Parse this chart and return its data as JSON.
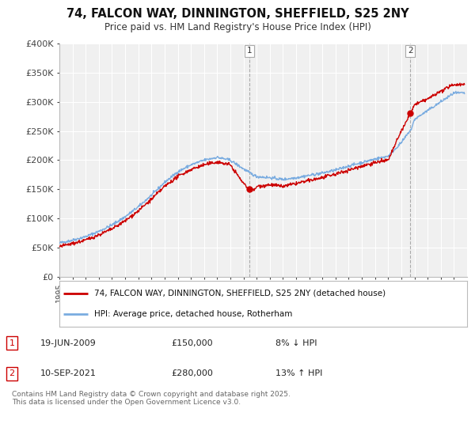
{
  "title_line1": "74, FALCON WAY, DINNINGTON, SHEFFIELD, S25 2NY",
  "title_line2": "Price paid vs. HM Land Registry's House Price Index (HPI)",
  "background_color": "#ffffff",
  "plot_bg_color": "#f0f0f0",
  "grid_color": "#ffffff",
  "red_line_color": "#cc0000",
  "blue_line_color": "#7aace0",
  "sale1_x": 2009.46,
  "sale1_y": 150000,
  "sale1_label": "1",
  "sale2_x": 2021.69,
  "sale2_y": 280000,
  "sale2_label": "2",
  "legend_red": "74, FALCON WAY, DINNINGTON, SHEFFIELD, S25 2NY (detached house)",
  "legend_blue": "HPI: Average price, detached house, Rotherham",
  "annotation1_date": "19-JUN-2009",
  "annotation1_price": "£150,000",
  "annotation1_hpi": "8% ↓ HPI",
  "annotation2_date": "10-SEP-2021",
  "annotation2_price": "£280,000",
  "annotation2_hpi": "13% ↑ HPI",
  "footer": "Contains HM Land Registry data © Crown copyright and database right 2025.\nThis data is licensed under the Open Government Licence v3.0.",
  "xmin": 1995,
  "xmax": 2026,
  "ymin": 0,
  "ymax": 400000,
  "yticks": [
    0,
    50000,
    100000,
    150000,
    200000,
    250000,
    300000,
    350000,
    400000
  ],
  "ytick_labels": [
    "£0",
    "£50K",
    "£100K",
    "£150K",
    "£200K",
    "£250K",
    "£300K",
    "£350K",
    "£400K"
  ]
}
